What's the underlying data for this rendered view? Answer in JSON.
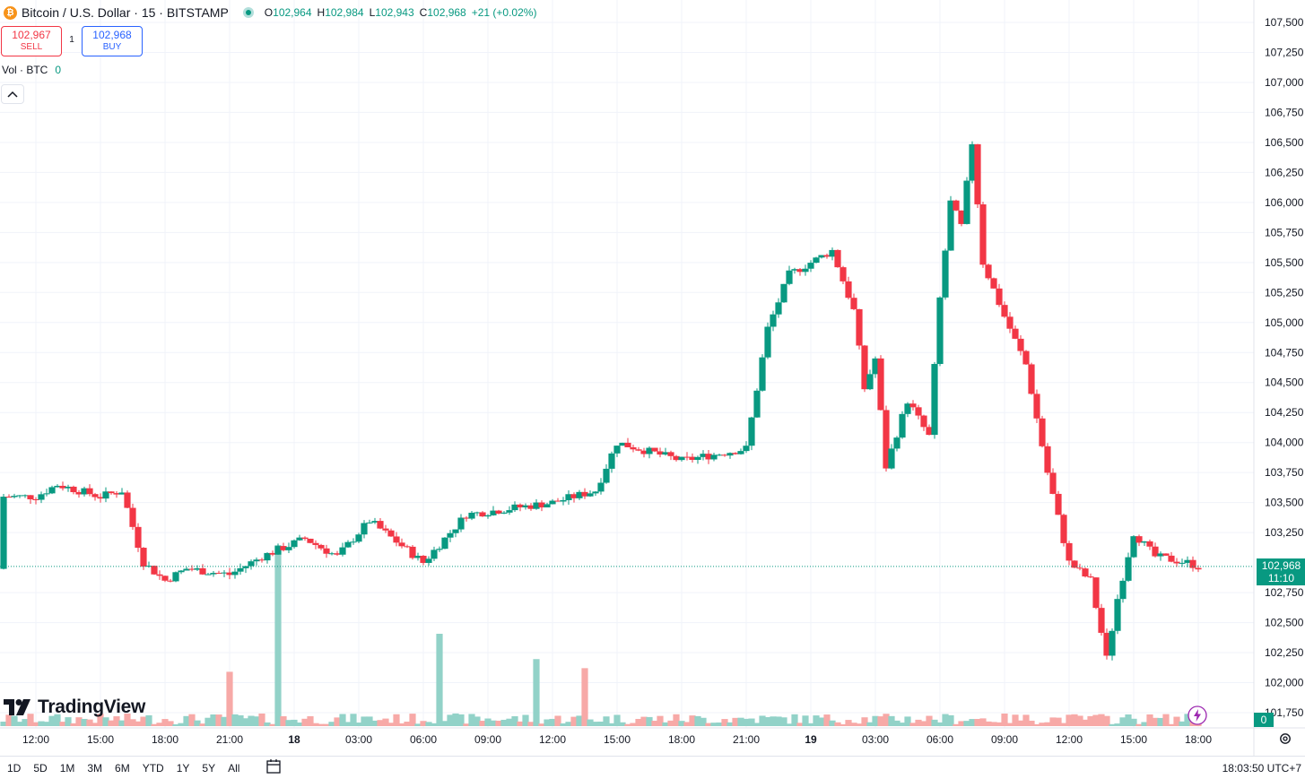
{
  "header": {
    "symbol_badge": "₿",
    "title": "Bitcoin / U.S. Dollar · 15 · BITSTAMP",
    "ohlc": {
      "o_label": "O",
      "o_value": "102,964",
      "h_label": "H",
      "h_value": "102,984",
      "l_label": "L",
      "l_value": "102,943",
      "c_label": "C",
      "c_value": "102,968",
      "change": "+21 (+0.02%)"
    }
  },
  "trade": {
    "sell_price": "102,967",
    "sell_label": "SELL",
    "spread": "1",
    "buy_price": "102,968",
    "buy_label": "BUY"
  },
  "volume_legend": {
    "label": "Vol · BTC",
    "value": "0"
  },
  "logo_text": "TradingView",
  "price_tag": {
    "price": "102,968",
    "countdown": "11:10"
  },
  "volume_tag": "0",
  "bottom_bar": {
    "ranges": [
      "1D",
      "5D",
      "1M",
      "3M",
      "6M",
      "YTD",
      "1Y",
      "5Y",
      "All"
    ],
    "clock": "18:03:50 UTC+7"
  },
  "colors": {
    "up": "#089981",
    "down": "#f23645",
    "vol_up": "#92d2c8",
    "vol_down": "#f7a9a7",
    "grid": "#f0f3fa"
  },
  "chart_data": {
    "type": "candlestick",
    "title": "Bitcoin / U.S. Dollar · 15 · BITSTAMP",
    "interval_minutes": 15,
    "ylim": [
      101750,
      107500
    ],
    "y_ticks": [
      "107,500",
      "107,250",
      "107,000",
      "106,750",
      "106,500",
      "106,250",
      "106,000",
      "105,750",
      "105,500",
      "105,250",
      "105,000",
      "104,750",
      "104,500",
      "104,250",
      "104,000",
      "103,750",
      "103,500",
      "103,250",
      "102,750",
      "102,500",
      "102,250",
      "102,000",
      "101,750"
    ],
    "x_ticks": [
      "12:00",
      "15:00",
      "18:00",
      "21:00",
      "18",
      "03:00",
      "06:00",
      "09:00",
      "12:00",
      "15:00",
      "18:00",
      "21:00",
      "19",
      "03:00",
      "06:00",
      "09:00",
      "12:00",
      "15:00",
      "18:00"
    ],
    "current_price": 102968,
    "current_volume": 0,
    "anchors": [
      {
        "time": "12:00",
        "close": 103550
      },
      {
        "time": "13:00",
        "close": 103650
      },
      {
        "time": "15:00",
        "close": 103550
      },
      {
        "time": "16:00",
        "close": 103600
      },
      {
        "time": "17:00",
        "close": 103000
      },
      {
        "time": "18:00",
        "close": 102850
      },
      {
        "time": "19:00",
        "close": 102950
      },
      {
        "time": "21:00",
        "close": 102900
      },
      {
        "time": "22:30",
        "close": 103050
      },
      {
        "time": "00:30",
        "close": 103200
      },
      {
        "time": "02:00",
        "close": 103050
      },
      {
        "time": "03:30",
        "close": 103350
      },
      {
        "time": "06:00",
        "close": 103000
      },
      {
        "time": "08:00",
        "close": 103400
      },
      {
        "time": "12:00",
        "close": 103500
      },
      {
        "time": "14:00",
        "close": 103600
      },
      {
        "time": "15:00",
        "close": 104000
      },
      {
        "time": "18:00",
        "close": 103850
      },
      {
        "time": "21:00",
        "close": 103950
      },
      {
        "time": "22:00",
        "close": 104950
      },
      {
        "time": "23:00",
        "close": 105400
      },
      {
        "time": "01:00",
        "close": 105600
      },
      {
        "time": "02:00",
        "close": 105100
      },
      {
        "time": "02:30",
        "close": 104450
      },
      {
        "time": "03:00",
        "close": 104700
      },
      {
        "time": "03:30",
        "close": 103800
      },
      {
        "time": "04:30",
        "close": 104350
      },
      {
        "time": "05:30",
        "close": 104050
      },
      {
        "time": "06:00",
        "close": 105200
      },
      {
        "time": "06:30",
        "close": 106000
      },
      {
        "time": "07:00",
        "close": 105800
      },
      {
        "time": "07:30",
        "close": 106500
      },
      {
        "time": "08:00",
        "close": 105500
      },
      {
        "time": "09:00",
        "close": 105050
      },
      {
        "time": "10:00",
        "close": 104650
      },
      {
        "time": "11:00",
        "close": 103750
      },
      {
        "time": "12:00",
        "close": 103000
      },
      {
        "time": "13:00",
        "close": 102850
      },
      {
        "time": "13:45",
        "close": 102200
      },
      {
        "time": "14:15",
        "close": 102700
      },
      {
        "time": "15:00",
        "close": 103250
      },
      {
        "time": "16:00",
        "close": 103050
      },
      {
        "time": "17:30",
        "close": 103000
      },
      {
        "time": "18:00",
        "close": 102968
      }
    ],
    "volume_spikes": [
      {
        "time": "21:00",
        "volume_ratio": 0.3
      },
      {
        "time": "23:15",
        "volume_ratio": 1.0
      },
      {
        "time": "06:45",
        "volume_ratio": 0.51
      },
      {
        "time": "11:15",
        "volume_ratio": 0.37
      },
      {
        "time": "13:30",
        "volume_ratio": 0.32
      }
    ]
  }
}
